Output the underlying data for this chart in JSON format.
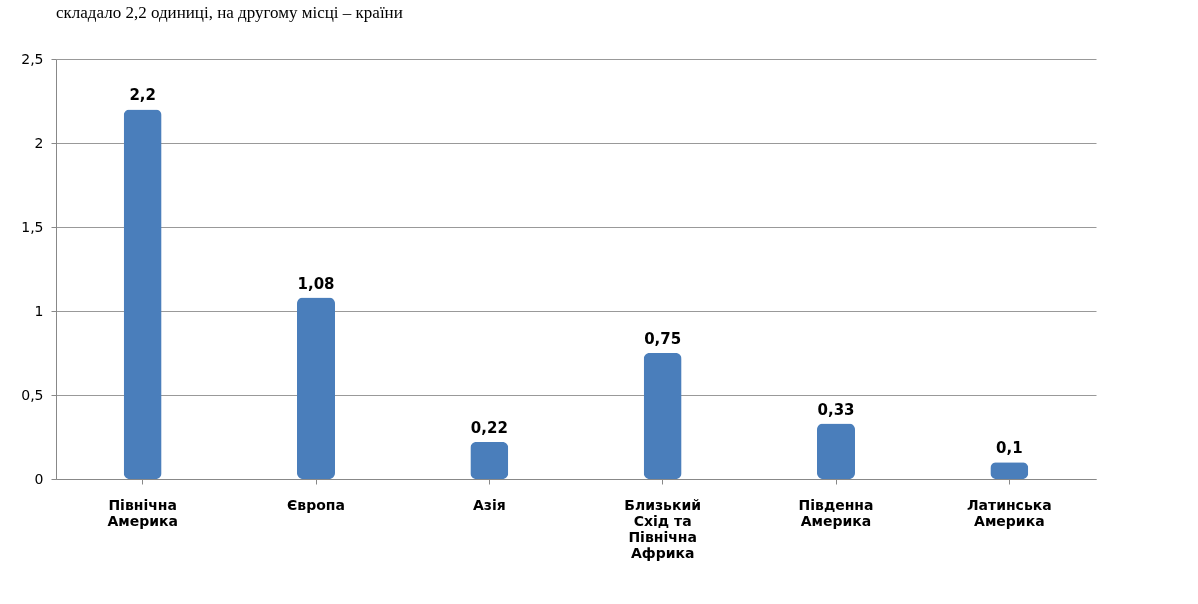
{
  "chart_data": {
    "type": "bar",
    "categories": [
      "Північна Америка",
      "Європа",
      "Азія",
      "Близький Схід та Північна Африка",
      "Південна Америка",
      "Латинська Америка"
    ],
    "values": [
      2.2,
      1.08,
      0.22,
      0.75,
      0.33,
      0.1
    ],
    "value_labels": [
      "2,2",
      "1,08",
      "0,22",
      "0,75",
      "0,33",
      "0,1"
    ],
    "color": "#4a7ebb",
    "ylim": [
      0,
      2.5
    ],
    "yticks": [
      0,
      {
        "value": 0.5,
        "label": "0,5"
      },
      1,
      {
        "value": 1.5,
        "label": "1,5"
      },
      2,
      {
        "value": 2.5,
        "label": "2,5"
      }
    ],
    "grid": "y",
    "annotations": [
      "складало 2,2 одиниці, на другому місці – країни"
    ]
  }
}
